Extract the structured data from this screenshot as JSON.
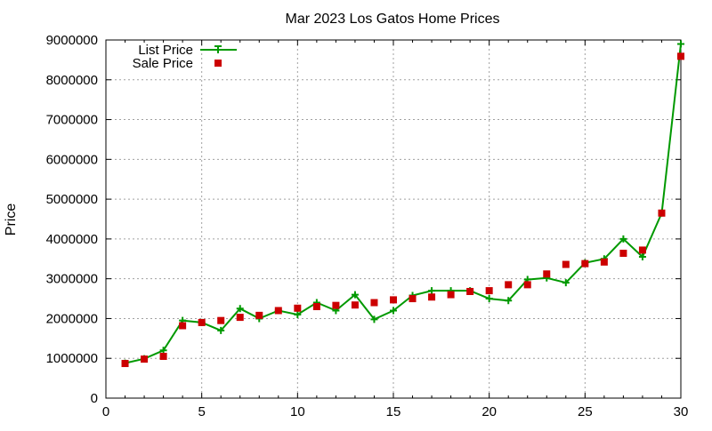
{
  "chart_data": {
    "type": "line",
    "title": "Mar 2023 Los Gatos Home Prices",
    "xlabel": "",
    "ylabel": "Price",
    "xlim": [
      0,
      30
    ],
    "ylim": [
      0,
      9000000
    ],
    "x_ticks": [
      0,
      5,
      10,
      15,
      20,
      25,
      30
    ],
    "y_ticks": [
      0,
      1000000,
      2000000,
      3000000,
      4000000,
      5000000,
      6000000,
      7000000,
      8000000,
      9000000
    ],
    "grid": true,
    "legend_position": "top-left",
    "x": [
      1,
      2,
      3,
      4,
      5,
      6,
      7,
      8,
      9,
      10,
      11,
      12,
      13,
      14,
      15,
      16,
      17,
      18,
      19,
      20,
      21,
      22,
      23,
      24,
      25,
      26,
      27,
      28,
      29,
      30
    ],
    "series": [
      {
        "name": "List Price",
        "style": "line-with-plus-markers",
        "color": "#009900",
        "values": [
          880000,
          990000,
          1200000,
          1950000,
          1900000,
          1700000,
          2250000,
          2000000,
          2200000,
          2100000,
          2400000,
          2200000,
          2600000,
          1980000,
          2200000,
          2580000,
          2700000,
          2700000,
          2700000,
          2500000,
          2450000,
          2980000,
          3020000,
          2900000,
          3400000,
          3500000,
          4000000,
          3550000,
          4650000,
          8900000
        ]
      },
      {
        "name": "Sale Price",
        "style": "square-markers",
        "color": "#cc0000",
        "values": [
          870000,
          980000,
          1050000,
          1820000,
          1900000,
          1950000,
          2030000,
          2080000,
          2200000,
          2260000,
          2300000,
          2330000,
          2340000,
          2400000,
          2470000,
          2500000,
          2540000,
          2600000,
          2680000,
          2700000,
          2850000,
          2850000,
          3120000,
          3360000,
          3380000,
          3420000,
          3640000,
          3720000,
          4650000,
          8590000
        ]
      }
    ]
  }
}
